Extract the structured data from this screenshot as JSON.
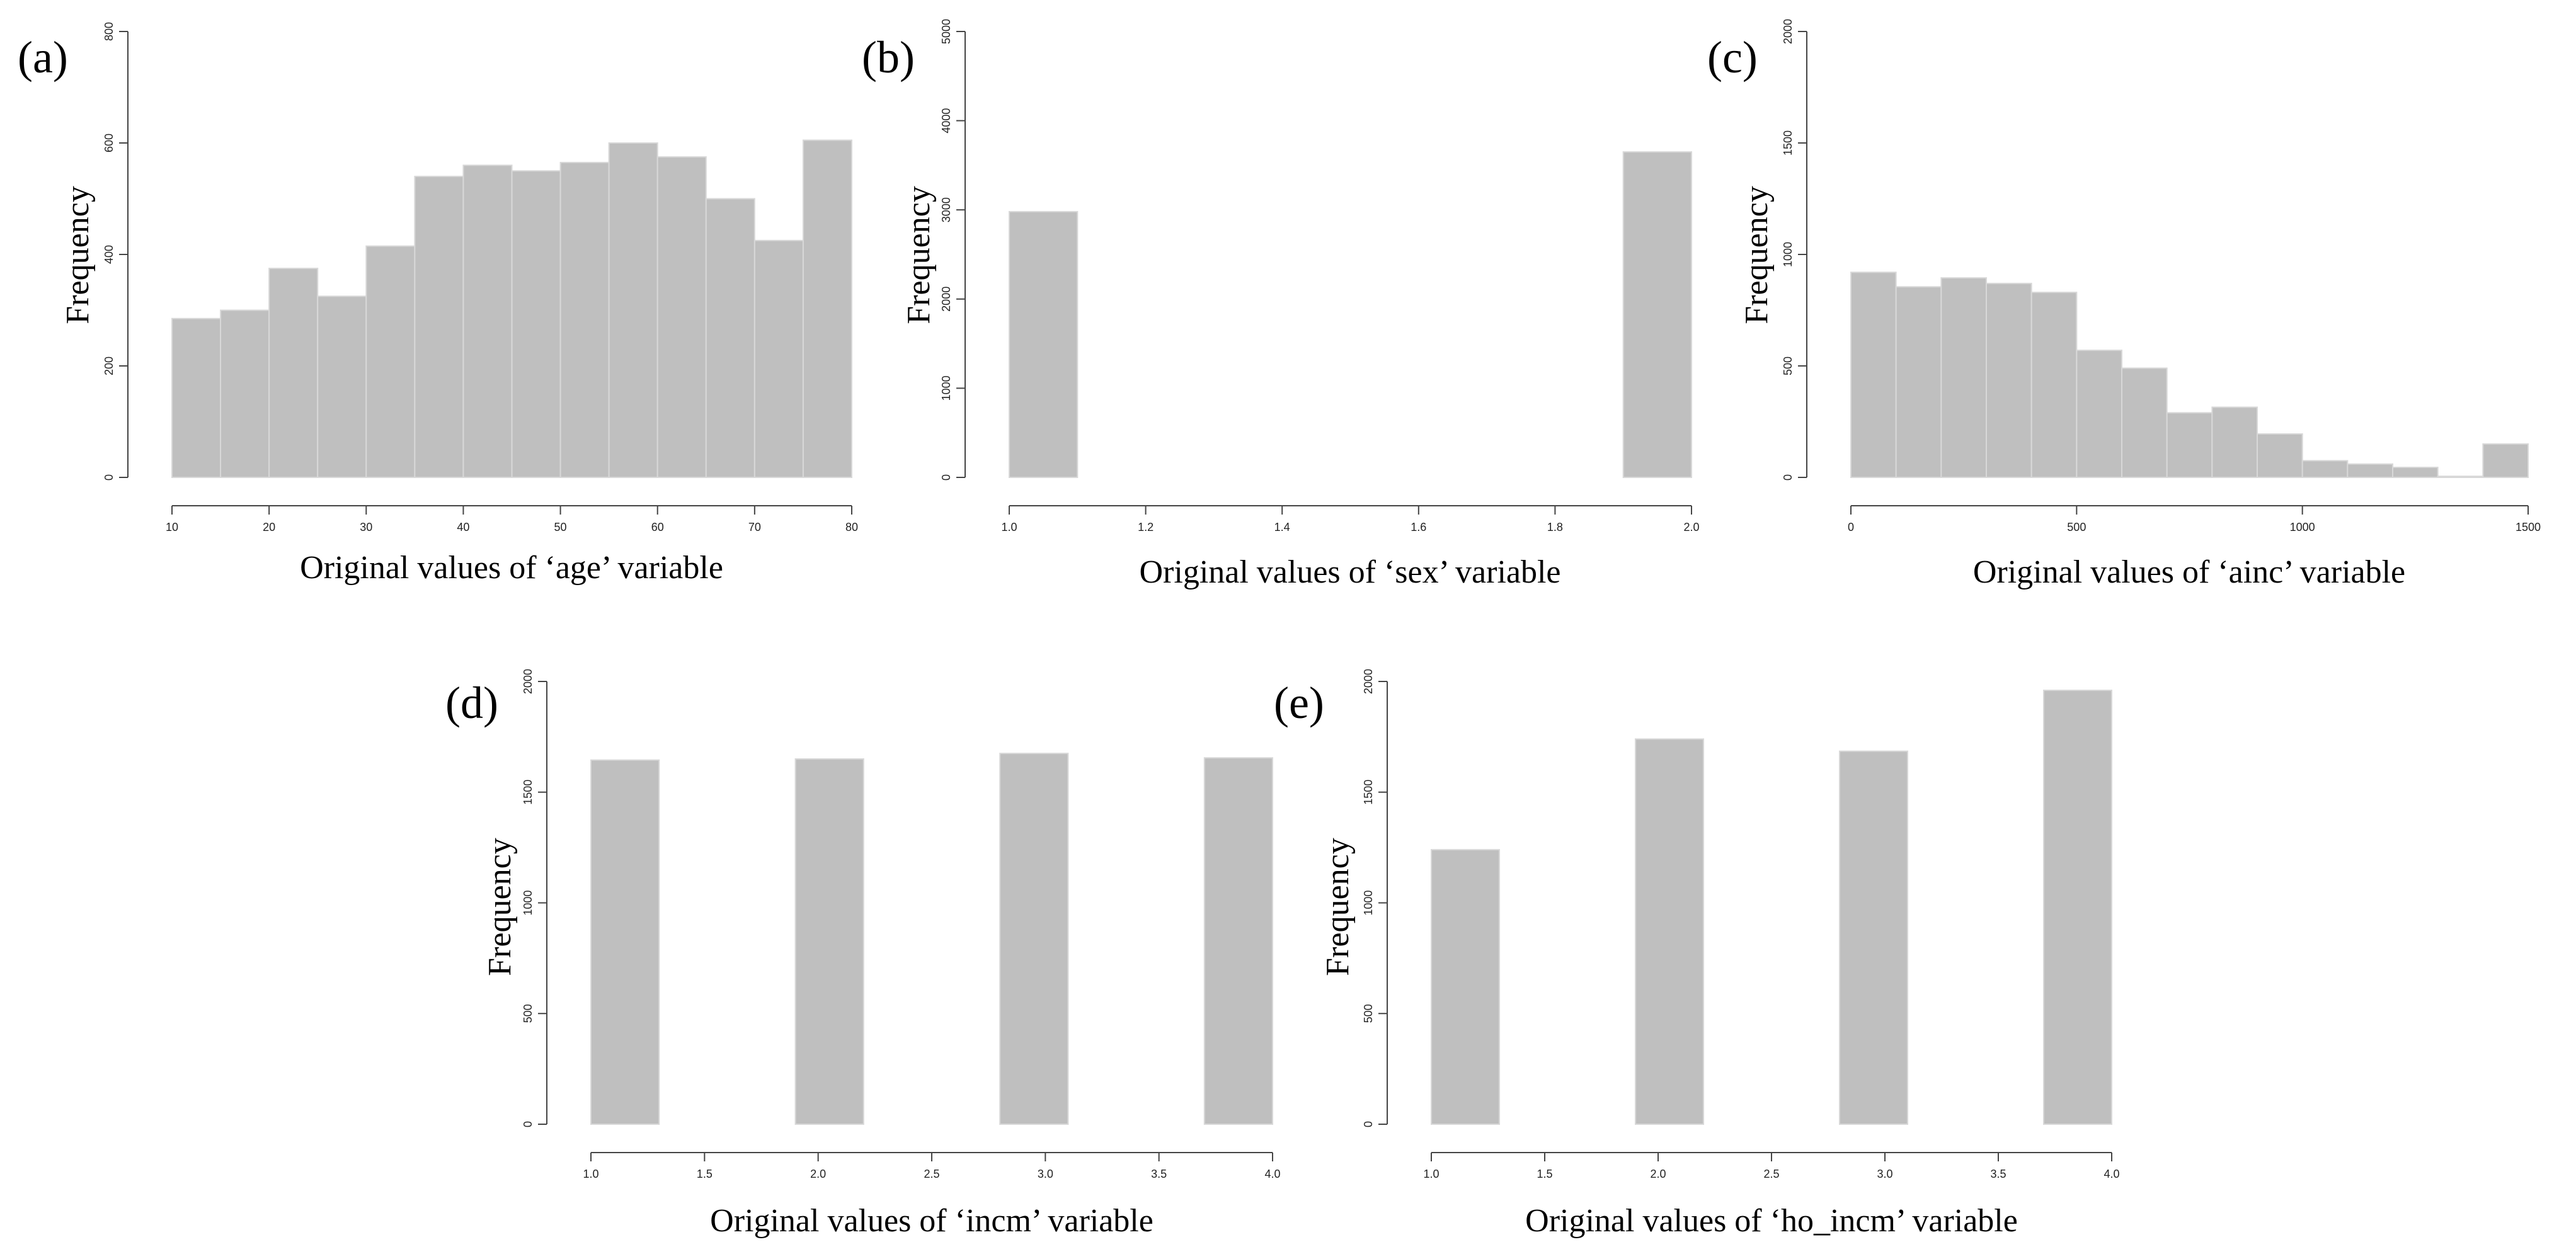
{
  "chart_data": [
    {
      "id": "a",
      "type": "bar",
      "panel_label": "(a)",
      "title": "",
      "xlabel": "Original values of ‘age’ variable",
      "ylabel": "Frequency",
      "xlim": [
        10,
        80
      ],
      "ylim": [
        0,
        800
      ],
      "xticks": [
        10,
        20,
        30,
        40,
        50,
        60,
        70,
        80
      ],
      "yticks": [
        0,
        200,
        400,
        600,
        800
      ],
      "bars": [
        {
          "x0": 10,
          "x1": 15,
          "value": 285
        },
        {
          "x0": 15,
          "x1": 20,
          "value": 300
        },
        {
          "x0": 20,
          "x1": 25,
          "value": 375
        },
        {
          "x0": 25,
          "x1": 30,
          "value": 325
        },
        {
          "x0": 30,
          "x1": 35,
          "value": 415
        },
        {
          "x0": 35,
          "x1": 40,
          "value": 540
        },
        {
          "x0": 40,
          "x1": 45,
          "value": 560
        },
        {
          "x0": 45,
          "x1": 50,
          "value": 550
        },
        {
          "x0": 50,
          "x1": 55,
          "value": 565
        },
        {
          "x0": 55,
          "x1": 60,
          "value": 600
        },
        {
          "x0": 60,
          "x1": 65,
          "value": 575
        },
        {
          "x0": 65,
          "x1": 70,
          "value": 500
        },
        {
          "x0": 70,
          "x1": 75,
          "value": 425
        },
        {
          "x0": 75,
          "x1": 80,
          "value": 605
        }
      ]
    },
    {
      "id": "b",
      "type": "bar",
      "panel_label": "(b)",
      "title": "",
      "xlabel": "Original values of ‘sex’ variable",
      "ylabel": "Frequency",
      "xlim": [
        1.0,
        2.0
      ],
      "ylim": [
        0,
        5000
      ],
      "xticks": [
        "1.0",
        "1.2",
        "1.4",
        "1.6",
        "1.8",
        "2.0"
      ],
      "yticks": [
        0,
        1000,
        2000,
        3000,
        4000,
        5000
      ],
      "bars": [
        {
          "x0": 1.0,
          "x1": 1.1,
          "value": 2980
        },
        {
          "x0": 1.9,
          "x1": 2.0,
          "value": 3650
        }
      ]
    },
    {
      "id": "c",
      "type": "bar",
      "panel_label": "(c)",
      "title": "",
      "xlabel": "Original values of ‘ainc’ variable",
      "ylabel": "Frequency",
      "xlim": [
        0,
        1500
      ],
      "ylim": [
        0,
        2000
      ],
      "xticks": [
        0,
        500,
        1000,
        1500
      ],
      "yticks": [
        0,
        500,
        1000,
        1500,
        2000
      ],
      "bars": [
        {
          "x0": 0,
          "x1": 100,
          "value": 920
        },
        {
          "x0": 100,
          "x1": 200,
          "value": 855
        },
        {
          "x0": 200,
          "x1": 300,
          "value": 895
        },
        {
          "x0": 300,
          "x1": 400,
          "value": 870
        },
        {
          "x0": 400,
          "x1": 500,
          "value": 830
        },
        {
          "x0": 500,
          "x1": 600,
          "value": 570
        },
        {
          "x0": 600,
          "x1": 700,
          "value": 490
        },
        {
          "x0": 700,
          "x1": 800,
          "value": 290
        },
        {
          "x0": 800,
          "x1": 900,
          "value": 315
        },
        {
          "x0": 900,
          "x1": 1000,
          "value": 195
        },
        {
          "x0": 1000,
          "x1": 1100,
          "value": 75
        },
        {
          "x0": 1100,
          "x1": 1200,
          "value": 60
        },
        {
          "x0": 1200,
          "x1": 1300,
          "value": 45
        },
        {
          "x0": 1300,
          "x1": 1400,
          "value": 5
        },
        {
          "x0": 1400,
          "x1": 1500,
          "value": 150
        }
      ]
    },
    {
      "id": "d",
      "type": "bar",
      "panel_label": "(d)",
      "title": "",
      "xlabel": "Original values of ‘incm’ variable",
      "ylabel": "Frequency",
      "xlim": [
        1.0,
        4.0
      ],
      "ylim": [
        0,
        2000
      ],
      "xticks": [
        "1.0",
        "1.5",
        "2.0",
        "2.5",
        "3.0",
        "3.5",
        "4.0"
      ],
      "yticks": [
        0,
        500,
        1000,
        1500,
        2000
      ],
      "bars": [
        {
          "x0": 1.0,
          "x1": 1.3,
          "value": 1645
        },
        {
          "x0": 1.9,
          "x1": 2.2,
          "value": 1650
        },
        {
          "x0": 2.8,
          "x1": 3.1,
          "value": 1675
        },
        {
          "x0": 3.7,
          "x1": 4.0,
          "value": 1655
        }
      ]
    },
    {
      "id": "e",
      "type": "bar",
      "panel_label": "(e)",
      "title": "",
      "xlabel": "Original values of ‘ho_incm’ variable",
      "ylabel": "Frequency",
      "xlim": [
        1.0,
        4.0
      ],
      "ylim": [
        0,
        2000
      ],
      "xticks": [
        "1.0",
        "1.5",
        "2.0",
        "2.5",
        "3.0",
        "3.5",
        "4.0"
      ],
      "yticks": [
        0,
        500,
        1000,
        1500,
        2000
      ],
      "bars": [
        {
          "x0": 1.0,
          "x1": 1.3,
          "value": 1240
        },
        {
          "x0": 1.9,
          "x1": 2.2,
          "value": 1740
        },
        {
          "x0": 2.8,
          "x1": 3.1,
          "value": 1685
        },
        {
          "x0": 3.7,
          "x1": 4.0,
          "value": 1960
        }
      ]
    }
  ]
}
